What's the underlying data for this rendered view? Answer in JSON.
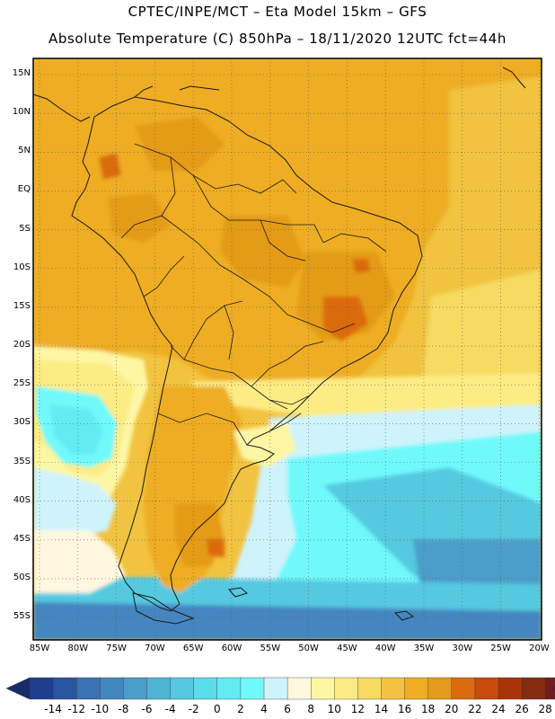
{
  "header": {
    "line1": "CPTEC/INPE/MCT –  Eta Model 15km – GFS",
    "line2": "Absolute Temperature (C) 850hPa – 18/11/2020 12UTC fct=44h"
  },
  "axes": {
    "lat_labels": [
      "15N",
      "10N",
      "5N",
      "EQ",
      "5S",
      "10S",
      "15S",
      "20S",
      "25S",
      "30S",
      "35S",
      "40S",
      "45S",
      "50S",
      "55S"
    ],
    "lon_labels": [
      "85W",
      "80W",
      "75W",
      "70W",
      "65W",
      "60W",
      "55W",
      "50W",
      "45W",
      "40W",
      "35W",
      "30W",
      "25W",
      "20W"
    ]
  },
  "colorbar": {
    "labels": [
      "-14",
      "-12",
      "-10",
      "-8",
      "-6",
      "-4",
      "-2",
      "0",
      "2",
      "4",
      "6",
      "8",
      "10",
      "12",
      "14",
      "16",
      "18",
      "20",
      "22",
      "24",
      "26",
      "28"
    ],
    "colors": [
      "#1f3f8e",
      "#2a55a0",
      "#3a72b3",
      "#4486c0",
      "#4b9ec9",
      "#50b4d5",
      "#55c9e0",
      "#5bdcea",
      "#62ecf2",
      "#6ff9fb",
      "#cff3fb",
      "#fff7df",
      "#fdf7a4",
      "#fcec83",
      "#f7da62",
      "#f1c340",
      "#eead23",
      "#e49b19",
      "#db6b0e",
      "#c74b0c",
      "#a9340a",
      "#862c12",
      "#6e1f1f"
    ],
    "extend_low_color": "#1a2b6b",
    "extend_high_color": "#7a0f2a"
  },
  "map_colors": {
    "frame": "#000000",
    "border": "#1a1a1a",
    "gridline": "#5a5a5a"
  }
}
